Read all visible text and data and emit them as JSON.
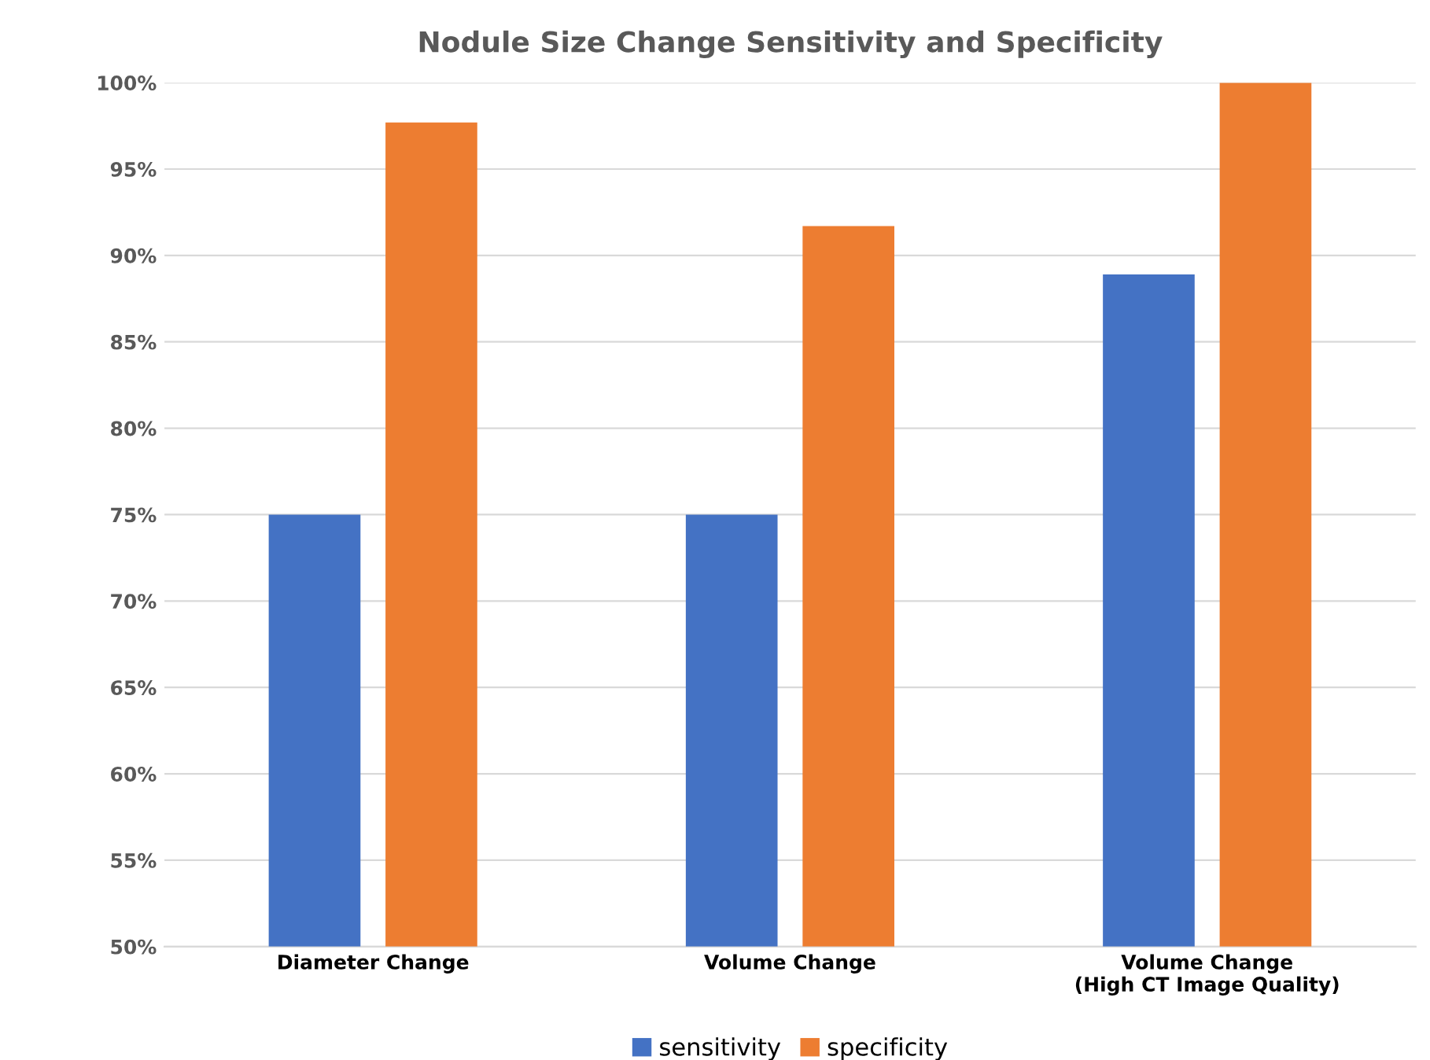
{
  "chart_data": {
    "type": "bar",
    "title": "Nodule Size Change Sensitivity and Specificity",
    "categories": [
      "Diameter Change",
      "Volume Change",
      "Volume Change\n(High CT Image Quality)"
    ],
    "series": [
      {
        "name": "sensitivity",
        "color": "#4472c4",
        "values": [
          75,
          75,
          88.9
        ]
      },
      {
        "name": "specificity",
        "color": "#ed7d31",
        "values": [
          97.7,
          91.7,
          100
        ]
      }
    ],
    "ylim": [
      50,
      100
    ],
    "yticks": [
      {
        "value": 50,
        "label": "50%"
      },
      {
        "value": 55,
        "label": "55%"
      },
      {
        "value": 60,
        "label": "60%"
      },
      {
        "value": 65,
        "label": "65%"
      },
      {
        "value": 70,
        "label": "70%"
      },
      {
        "value": 75,
        "label": "75%"
      },
      {
        "value": 80,
        "label": "80%"
      },
      {
        "value": 85,
        "label": "85%"
      },
      {
        "value": 90,
        "label": "90%"
      },
      {
        "value": 95,
        "label": "95%"
      },
      {
        "value": 100,
        "label": "100%"
      }
    ],
    "grid": "y",
    "legend": "bottom"
  }
}
